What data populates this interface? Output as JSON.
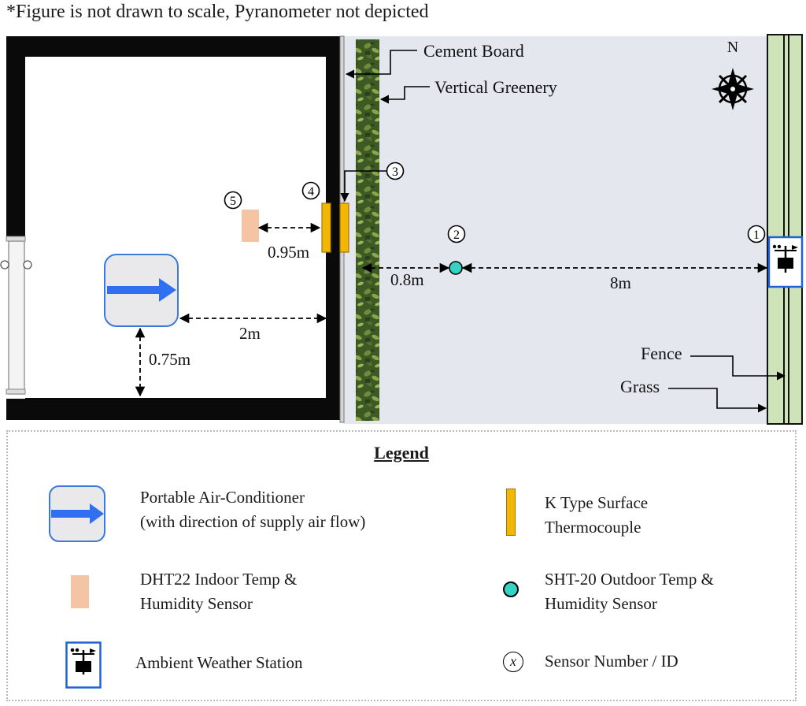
{
  "note": "*Figure is not drawn to scale, Pyranometer not depicted",
  "compass": {
    "label": "N"
  },
  "labels": {
    "cement_board": "Cement Board",
    "vertical_greenery": "Vertical Greenery",
    "fence": "Fence",
    "grass": "Grass"
  },
  "distances": {
    "d_095": "0.95m",
    "d_2": "2m",
    "d_075": "0.75m",
    "d_08": "0.8m",
    "d_8": "8m"
  },
  "sensor_ids": [
    "1",
    "2",
    "3",
    "4",
    "5"
  ],
  "legend": {
    "title": "Legend",
    "ac": {
      "line1": "Portable Air-Conditioner",
      "line2": "(with direction of supply air flow)"
    },
    "thermocouple": {
      "line1": "K Type Surface",
      "line2": "Thermocouple"
    },
    "dht22": {
      "line1": "DHT22 Indoor Temp &",
      "line2": "Humidity Sensor"
    },
    "sht20": {
      "line1": "SHT-20 Outdoor Temp &",
      "line2": "Humidity Sensor"
    },
    "weather_station": {
      "label": "Ambient Weather Station"
    },
    "sensor_id": {
      "symbol": "x",
      "label": "Sensor Number / ID"
    }
  },
  "colors": {
    "wall": "#0a0a0a",
    "outdoor_bg": "#e4e7ee",
    "greenery": "#3c5a24",
    "grass": "#cfe3b8",
    "ac_fill": "#e9e9ec",
    "ac_border": "#3b7ad9",
    "ac_arrow": "#2f6ff0",
    "thermocouple": "#f2b705",
    "dht22": "#f5c4a4",
    "sht20": "#33d3c5",
    "station_border": "#1f63d6"
  }
}
